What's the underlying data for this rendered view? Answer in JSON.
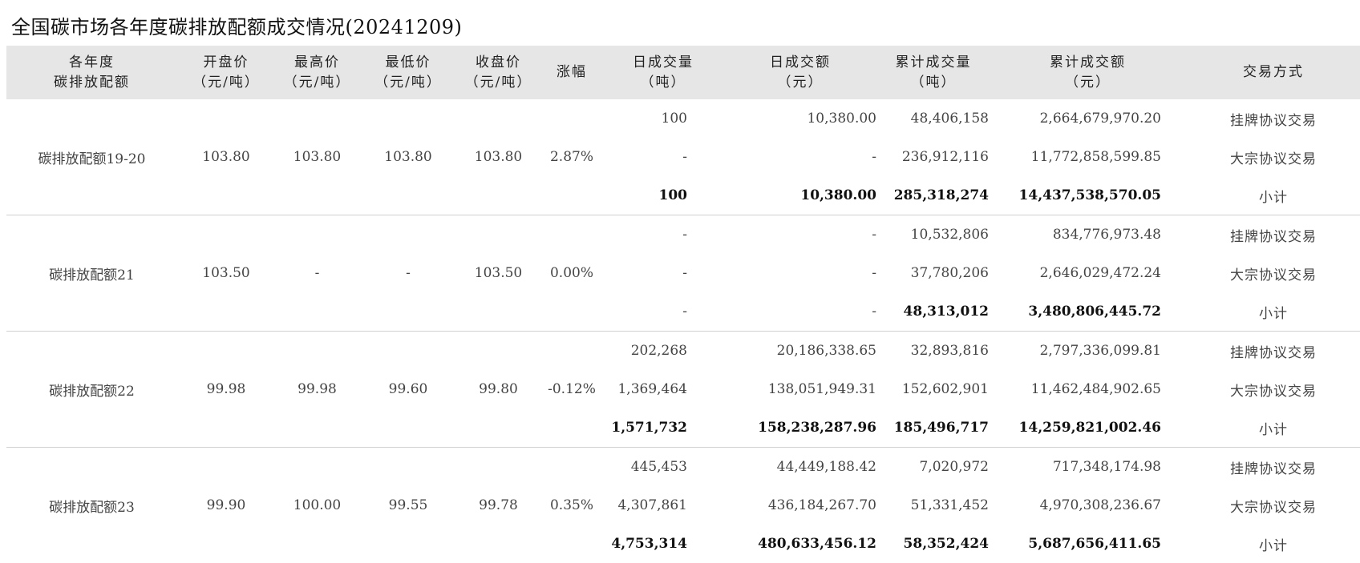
{
  "title": "全国碳市场各年度碳排放配额成交情况(20241209)",
  "headers": [
    {
      "line1": "各年度",
      "line2": "碳排放配额"
    },
    {
      "line1": "开盘价",
      "line2": "（元/吨）"
    },
    {
      "line1": "最高价",
      "line2": "（元/吨）"
    },
    {
      "line1": "最低价",
      "line2": "（元/吨）"
    },
    {
      "line1": "收盘价",
      "line2": "（元/吨）"
    },
    {
      "line1": "涨幅",
      "line2": ""
    },
    {
      "line1": "日成交量",
      "line2": "（吨）"
    },
    {
      "line1": "日成交额",
      "line2": "（元）"
    },
    {
      "line1": "累计成交量",
      "line2": "（吨）"
    },
    {
      "line1": "累计成交额",
      "line2": "（元）"
    },
    {
      "line1": "交易方式",
      "line2": ""
    }
  ],
  "groups": [
    {
      "name": "碳排放配额19-20",
      "open": "103.80",
      "high": "103.80",
      "low": "103.80",
      "close": "103.80",
      "change": "2.87%",
      "rows": [
        {
          "daily_volume": "100",
          "daily_amount": "10,380.00",
          "cum_volume": "48,406,158",
          "cum_amount": "2,664,679,970.20",
          "mode": "挂牌协议交易"
        },
        {
          "daily_volume": "-",
          "daily_amount": "-",
          "cum_volume": "236,912,116",
          "cum_amount": "11,772,858,599.85",
          "mode": "大宗协议交易"
        },
        {
          "daily_volume": "100",
          "daily_amount": "10,380.00",
          "cum_volume": "285,318,274",
          "cum_amount": "14,437,538,570.05",
          "mode": "小计"
        }
      ]
    },
    {
      "name": "碳排放配额21",
      "open": "103.50",
      "high": "-",
      "low": "-",
      "close": "103.50",
      "change": "0.00%",
      "rows": [
        {
          "daily_volume": "-",
          "daily_amount": "-",
          "cum_volume": "10,532,806",
          "cum_amount": "834,776,973.48",
          "mode": "挂牌协议交易"
        },
        {
          "daily_volume": "-",
          "daily_amount": "-",
          "cum_volume": "37,780,206",
          "cum_amount": "2,646,029,472.24",
          "mode": "大宗协议交易"
        },
        {
          "daily_volume": "-",
          "daily_amount": "-",
          "cum_volume": "48,313,012",
          "cum_amount": "3,480,806,445.72",
          "mode": "小计"
        }
      ]
    },
    {
      "name": "碳排放配额22",
      "open": "99.98",
      "high": "99.98",
      "low": "99.60",
      "close": "99.80",
      "change": "-0.12%",
      "rows": [
        {
          "daily_volume": "202,268",
          "daily_amount": "20,186,338.65",
          "cum_volume": "32,893,816",
          "cum_amount": "2,797,336,099.81",
          "mode": "挂牌协议交易"
        },
        {
          "daily_volume": "1,369,464",
          "daily_amount": "138,051,949.31",
          "cum_volume": "152,602,901",
          "cum_amount": "11,462,484,902.65",
          "mode": "大宗协议交易"
        },
        {
          "daily_volume": "1,571,732",
          "daily_amount": "158,238,287.96",
          "cum_volume": "185,496,717",
          "cum_amount": "14,259,821,002.46",
          "mode": "小计"
        }
      ]
    },
    {
      "name": "碳排放配额23",
      "open": "99.90",
      "high": "100.00",
      "low": "99.55",
      "close": "99.78",
      "change": "0.35%",
      "rows": [
        {
          "daily_volume": "445,453",
          "daily_amount": "44,449,188.42",
          "cum_volume": "7,020,972",
          "cum_amount": "717,348,174.98",
          "mode": "挂牌协议交易"
        },
        {
          "daily_volume": "4,307,861",
          "daily_amount": "436,184,267.70",
          "cum_volume": "51,331,452",
          "cum_amount": "4,970,308,236.67",
          "mode": "大宗协议交易"
        },
        {
          "daily_volume": "4,753,314",
          "daily_amount": "480,633,456.12",
          "cum_volume": "58,352,424",
          "cum_amount": "5,687,656,411.65",
          "mode": "小计"
        }
      ]
    }
  ]
}
